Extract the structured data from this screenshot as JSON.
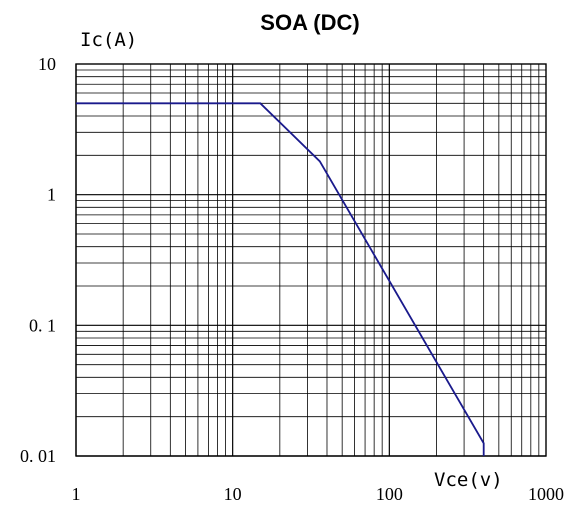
{
  "chart_data": {
    "type": "line",
    "title": "SOA (DC)",
    "ylabel": "Ic(A)",
    "xlabel": "Vce(v)",
    "xscale": "log",
    "yscale": "log",
    "xlim": [
      1,
      1000
    ],
    "ylim": [
      0.01,
      10
    ],
    "grid": true,
    "legend": "none",
    "x_ticks": [
      {
        "value": 1,
        "label": "1"
      },
      {
        "value": 10,
        "label": "10"
      },
      {
        "value": 100,
        "label": "100"
      },
      {
        "value": 1000,
        "label": "1000"
      }
    ],
    "y_ticks": [
      {
        "value": 10,
        "label": "10"
      },
      {
        "value": 1,
        "label": "1"
      },
      {
        "value": 0.1,
        "label": "0. 1"
      },
      {
        "value": 0.01,
        "label": "0. 01"
      }
    ],
    "series": [
      {
        "color": "#1a1a8c",
        "x": [
          1,
          15,
          36,
          400,
          400
        ],
        "y": [
          5,
          5,
          1.8,
          0.0125,
          0.01
        ]
      }
    ]
  }
}
